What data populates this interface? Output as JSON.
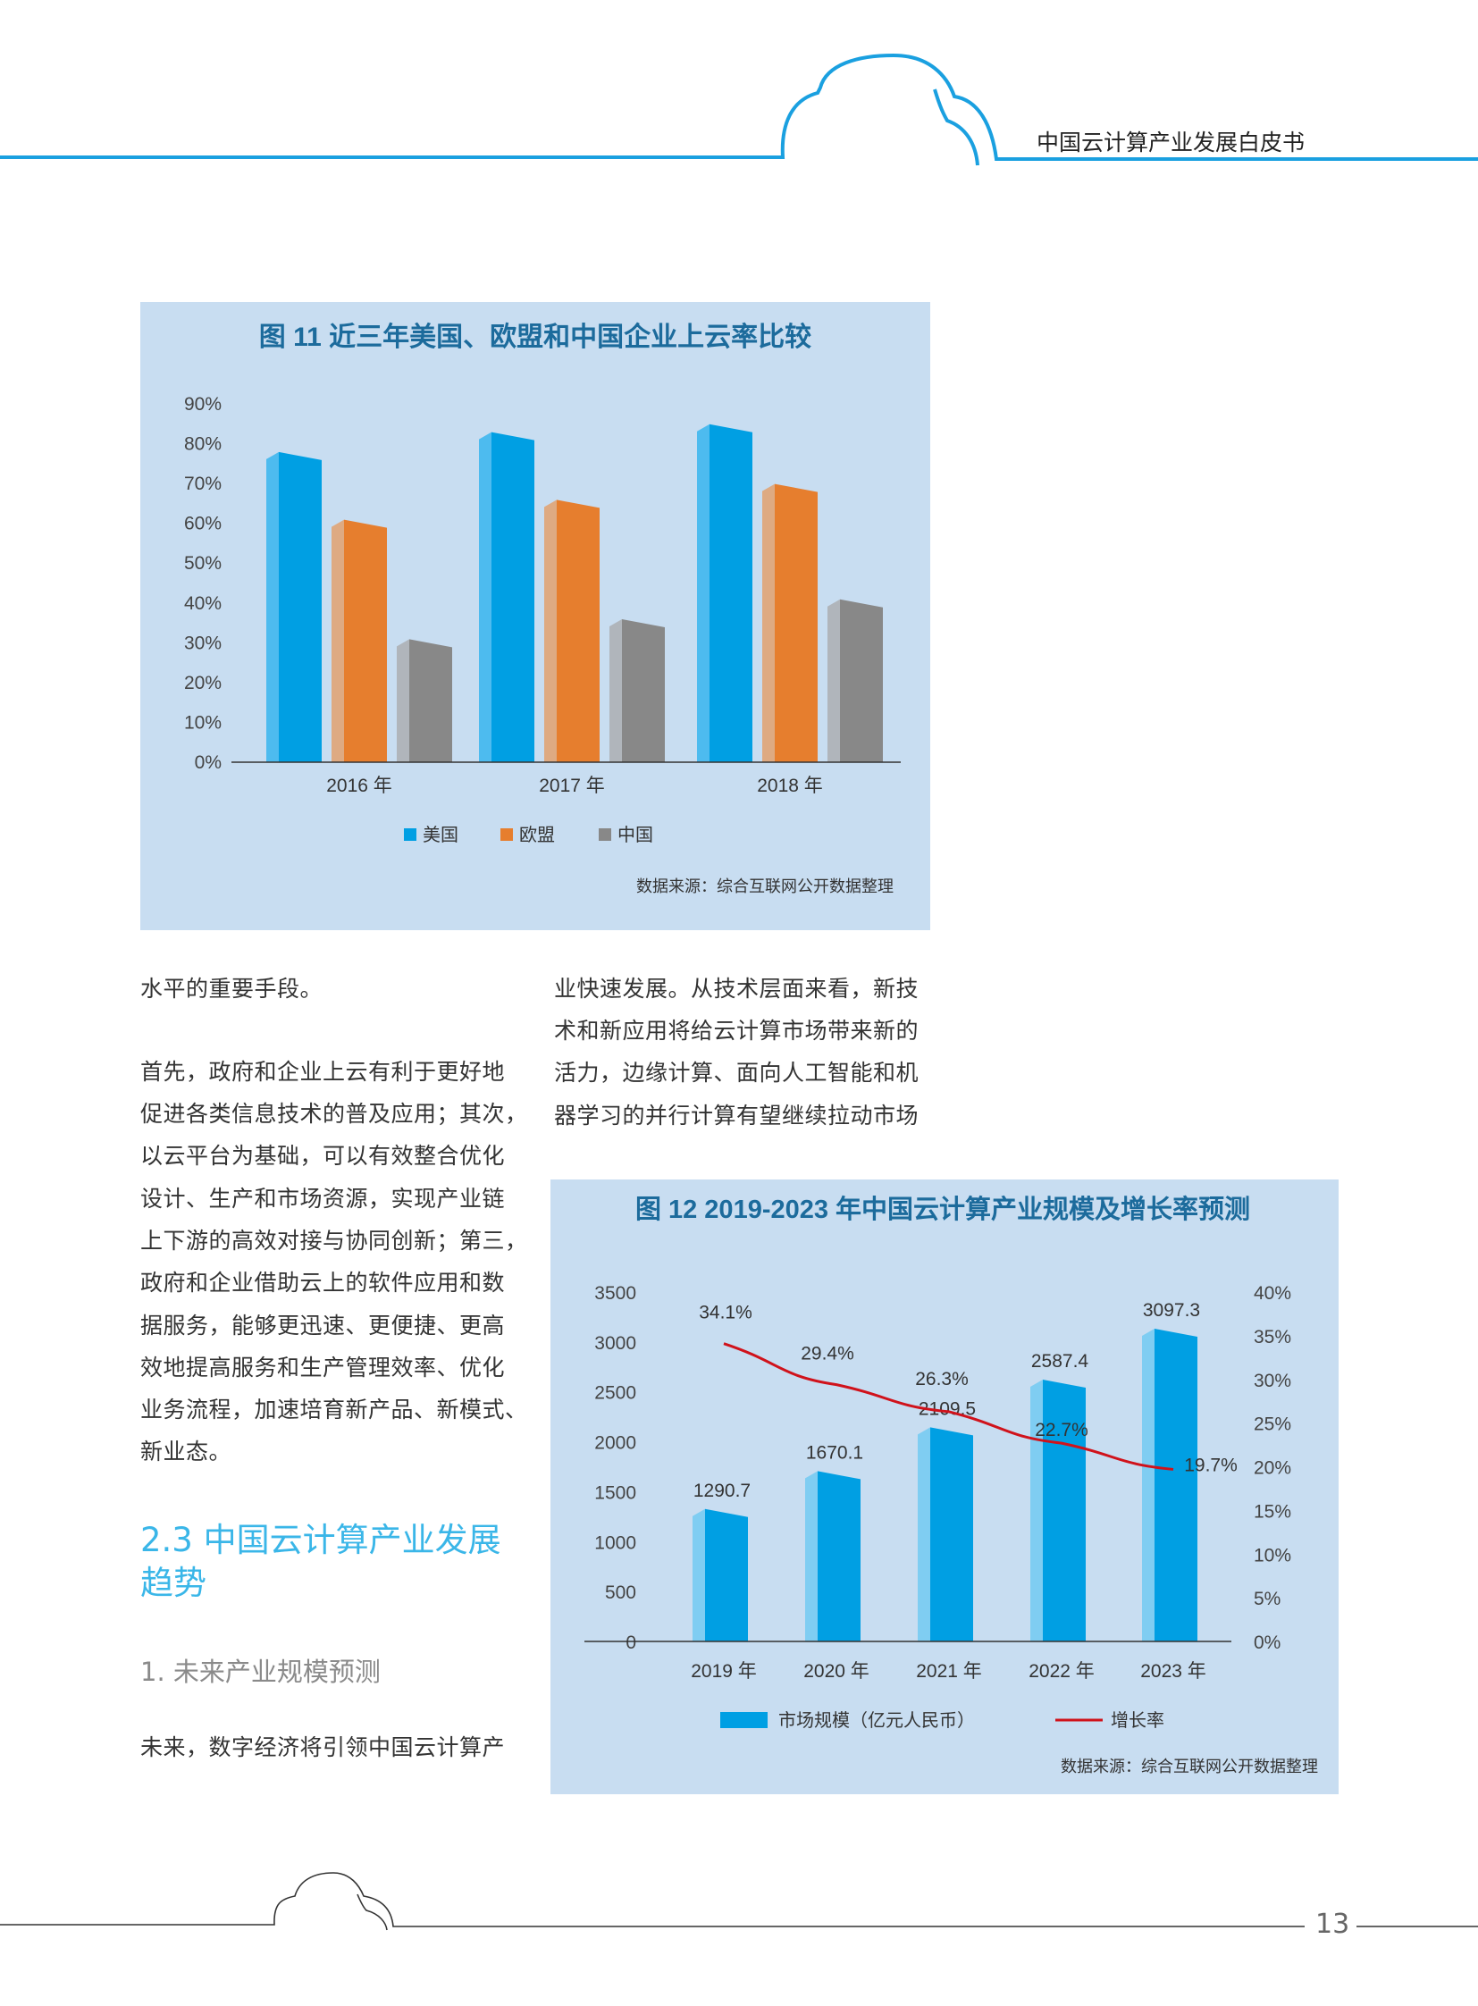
{
  "header": {
    "title": "中国云计算产业发展白皮书",
    "accent": "#1aa0e0"
  },
  "left_column": {
    "para1": [
      "水平的重要手段。"
    ],
    "para2": [
      "首先，政府和企业上云有利于更好地",
      "促进各类信息技术的普及应用；其次，",
      "以云平台为基础，可以有效整合优化",
      "设计、生产和市场资源，实现产业链",
      "上下游的高效对接与协同创新；第三，",
      "政府和企业借助云上的软件应用和数",
      "据服务，能够更迅速、更便捷、更高",
      "效地提高服务和生产管理效率、优化",
      "业务流程，加速培育新产品、新模式、",
      "新业态。"
    ],
    "section_heading": "2.3 中国云计算产业发展趋势",
    "subheading": "1. 未来产业规模预测",
    "para3": [
      "未来，数字经济将引领中国云计算产"
    ]
  },
  "right_column": {
    "para1": [
      "业快速发展。从技术层面来看，新技",
      "术和新应用将给云计算市场带来新的",
      "活力，边缘计算、面向人工智能和机",
      "器学习的并行计算有望继续拉动市场"
    ]
  },
  "footer": {
    "page_number": "13"
  },
  "chart_data": [
    {
      "type": "bar",
      "title": "图 11  近三年美国、欧盟和中国企业上云率比较",
      "categories": [
        "2016 年",
        "2017 年",
        "2018 年"
      ],
      "series": [
        {
          "name": "美国",
          "values": [
            77,
            82,
            84
          ],
          "color": "#009fe3",
          "light": "#4dbbef"
        },
        {
          "name": "欧盟",
          "values": [
            60,
            65,
            69
          ],
          "color": "#e67e2e",
          "light": "#deaa82"
        },
        {
          "name": "中国",
          "values": [
            30,
            35,
            40
          ],
          "color": "#888888",
          "light": "#b0b5bb"
        }
      ],
      "yticks": [
        "0%",
        "10%",
        "20%",
        "30%",
        "40%",
        "50%",
        "60%",
        "70%",
        "80%",
        "90%"
      ],
      "ylim": [
        0,
        90
      ],
      "unit": "%",
      "legend": "bottom",
      "grid": false,
      "source": "数据来源：综合互联网公开数据整理"
    },
    {
      "type": "bar+line",
      "title": "图 12  2019-2023 年中国云计算产业规模及增长率预测",
      "categories": [
        "2019 年",
        "2020 年",
        "2021 年",
        "2022 年",
        "2023 年"
      ],
      "bar_series": {
        "name": "市场规模（亿元人民币）",
        "values": [
          1290.7,
          1670.1,
          2109.5,
          2587.4,
          3097.3
        ],
        "labels": [
          "1290.7",
          "1670.1",
          "2109.5",
          "2587.4",
          "3097.3"
        ],
        "color": "#009fe3",
        "light": "#7fcdf2"
      },
      "line_series": {
        "name": "增长率",
        "values": [
          34.1,
          29.4,
          26.3,
          22.7,
          19.7
        ],
        "labels": [
          "34.1%",
          "29.4%",
          "26.3%",
          "22.7%",
          "19.7%"
        ],
        "color": "#d0121b"
      },
      "yticks_left": [
        "0",
        "500",
        "1000",
        "1500",
        "2000",
        "2500",
        "3000",
        "3500"
      ],
      "ylim_left": [
        0,
        3500
      ],
      "yticks_right": [
        "0%",
        "5%",
        "10%",
        "15%",
        "20%",
        "25%",
        "30%",
        "35%",
        "40%"
      ],
      "ylim_right": [
        0,
        40
      ],
      "legend": "bottom",
      "grid": false,
      "source": "数据来源：综合互联网公开数据整理"
    }
  ]
}
